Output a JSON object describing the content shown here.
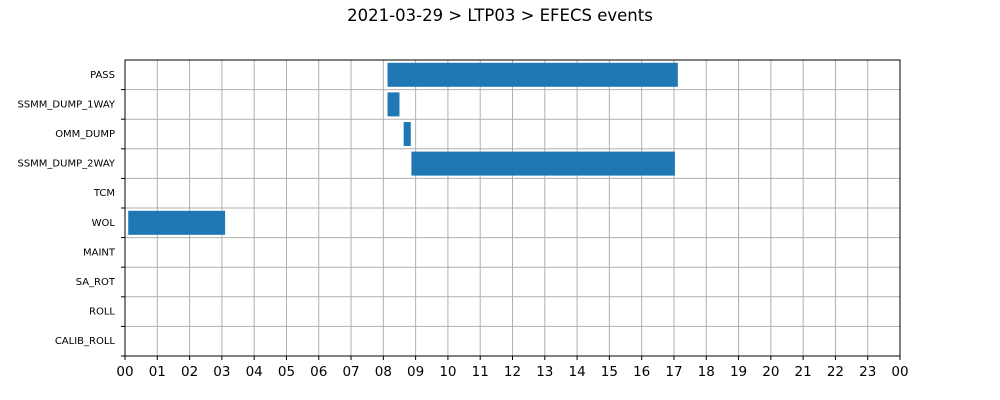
{
  "chart_data": {
    "type": "bar",
    "orientation": "horizontal",
    "title": "2021-03-29 > LTP03 > EFECS events",
    "xlabel": "",
    "ylabel": "",
    "xlim": [
      0,
      24
    ],
    "x_unit": "hour",
    "x_ticks": [
      "00",
      "01",
      "02",
      "03",
      "04",
      "05",
      "06",
      "07",
      "08",
      "09",
      "10",
      "11",
      "12",
      "13",
      "14",
      "15",
      "16",
      "17",
      "18",
      "19",
      "20",
      "21",
      "22",
      "23",
      "00"
    ],
    "categories": [
      "PASS",
      "SSMM_DUMP_1WAY",
      "OMM_DUMP",
      "SSMM_DUMP_2WAY",
      "TCM",
      "WOL",
      "MAINT",
      "SA_ROT",
      "ROLL",
      "CALIB_ROLL"
    ],
    "series": [
      {
        "color": "#1f77b4",
        "intervals": [
          {
            "category": "PASS",
            "start": 8.13,
            "end": 17.12
          },
          {
            "category": "SSMM_DUMP_1WAY",
            "start": 8.13,
            "end": 8.5
          },
          {
            "category": "OMM_DUMP",
            "start": 8.63,
            "end": 8.85
          },
          {
            "category": "SSMM_DUMP_2WAY",
            "start": 8.87,
            "end": 17.03
          },
          {
            "category": "WOL",
            "start": 0.1,
            "end": 3.1
          }
        ]
      }
    ],
    "grid": true,
    "legend": "none"
  }
}
